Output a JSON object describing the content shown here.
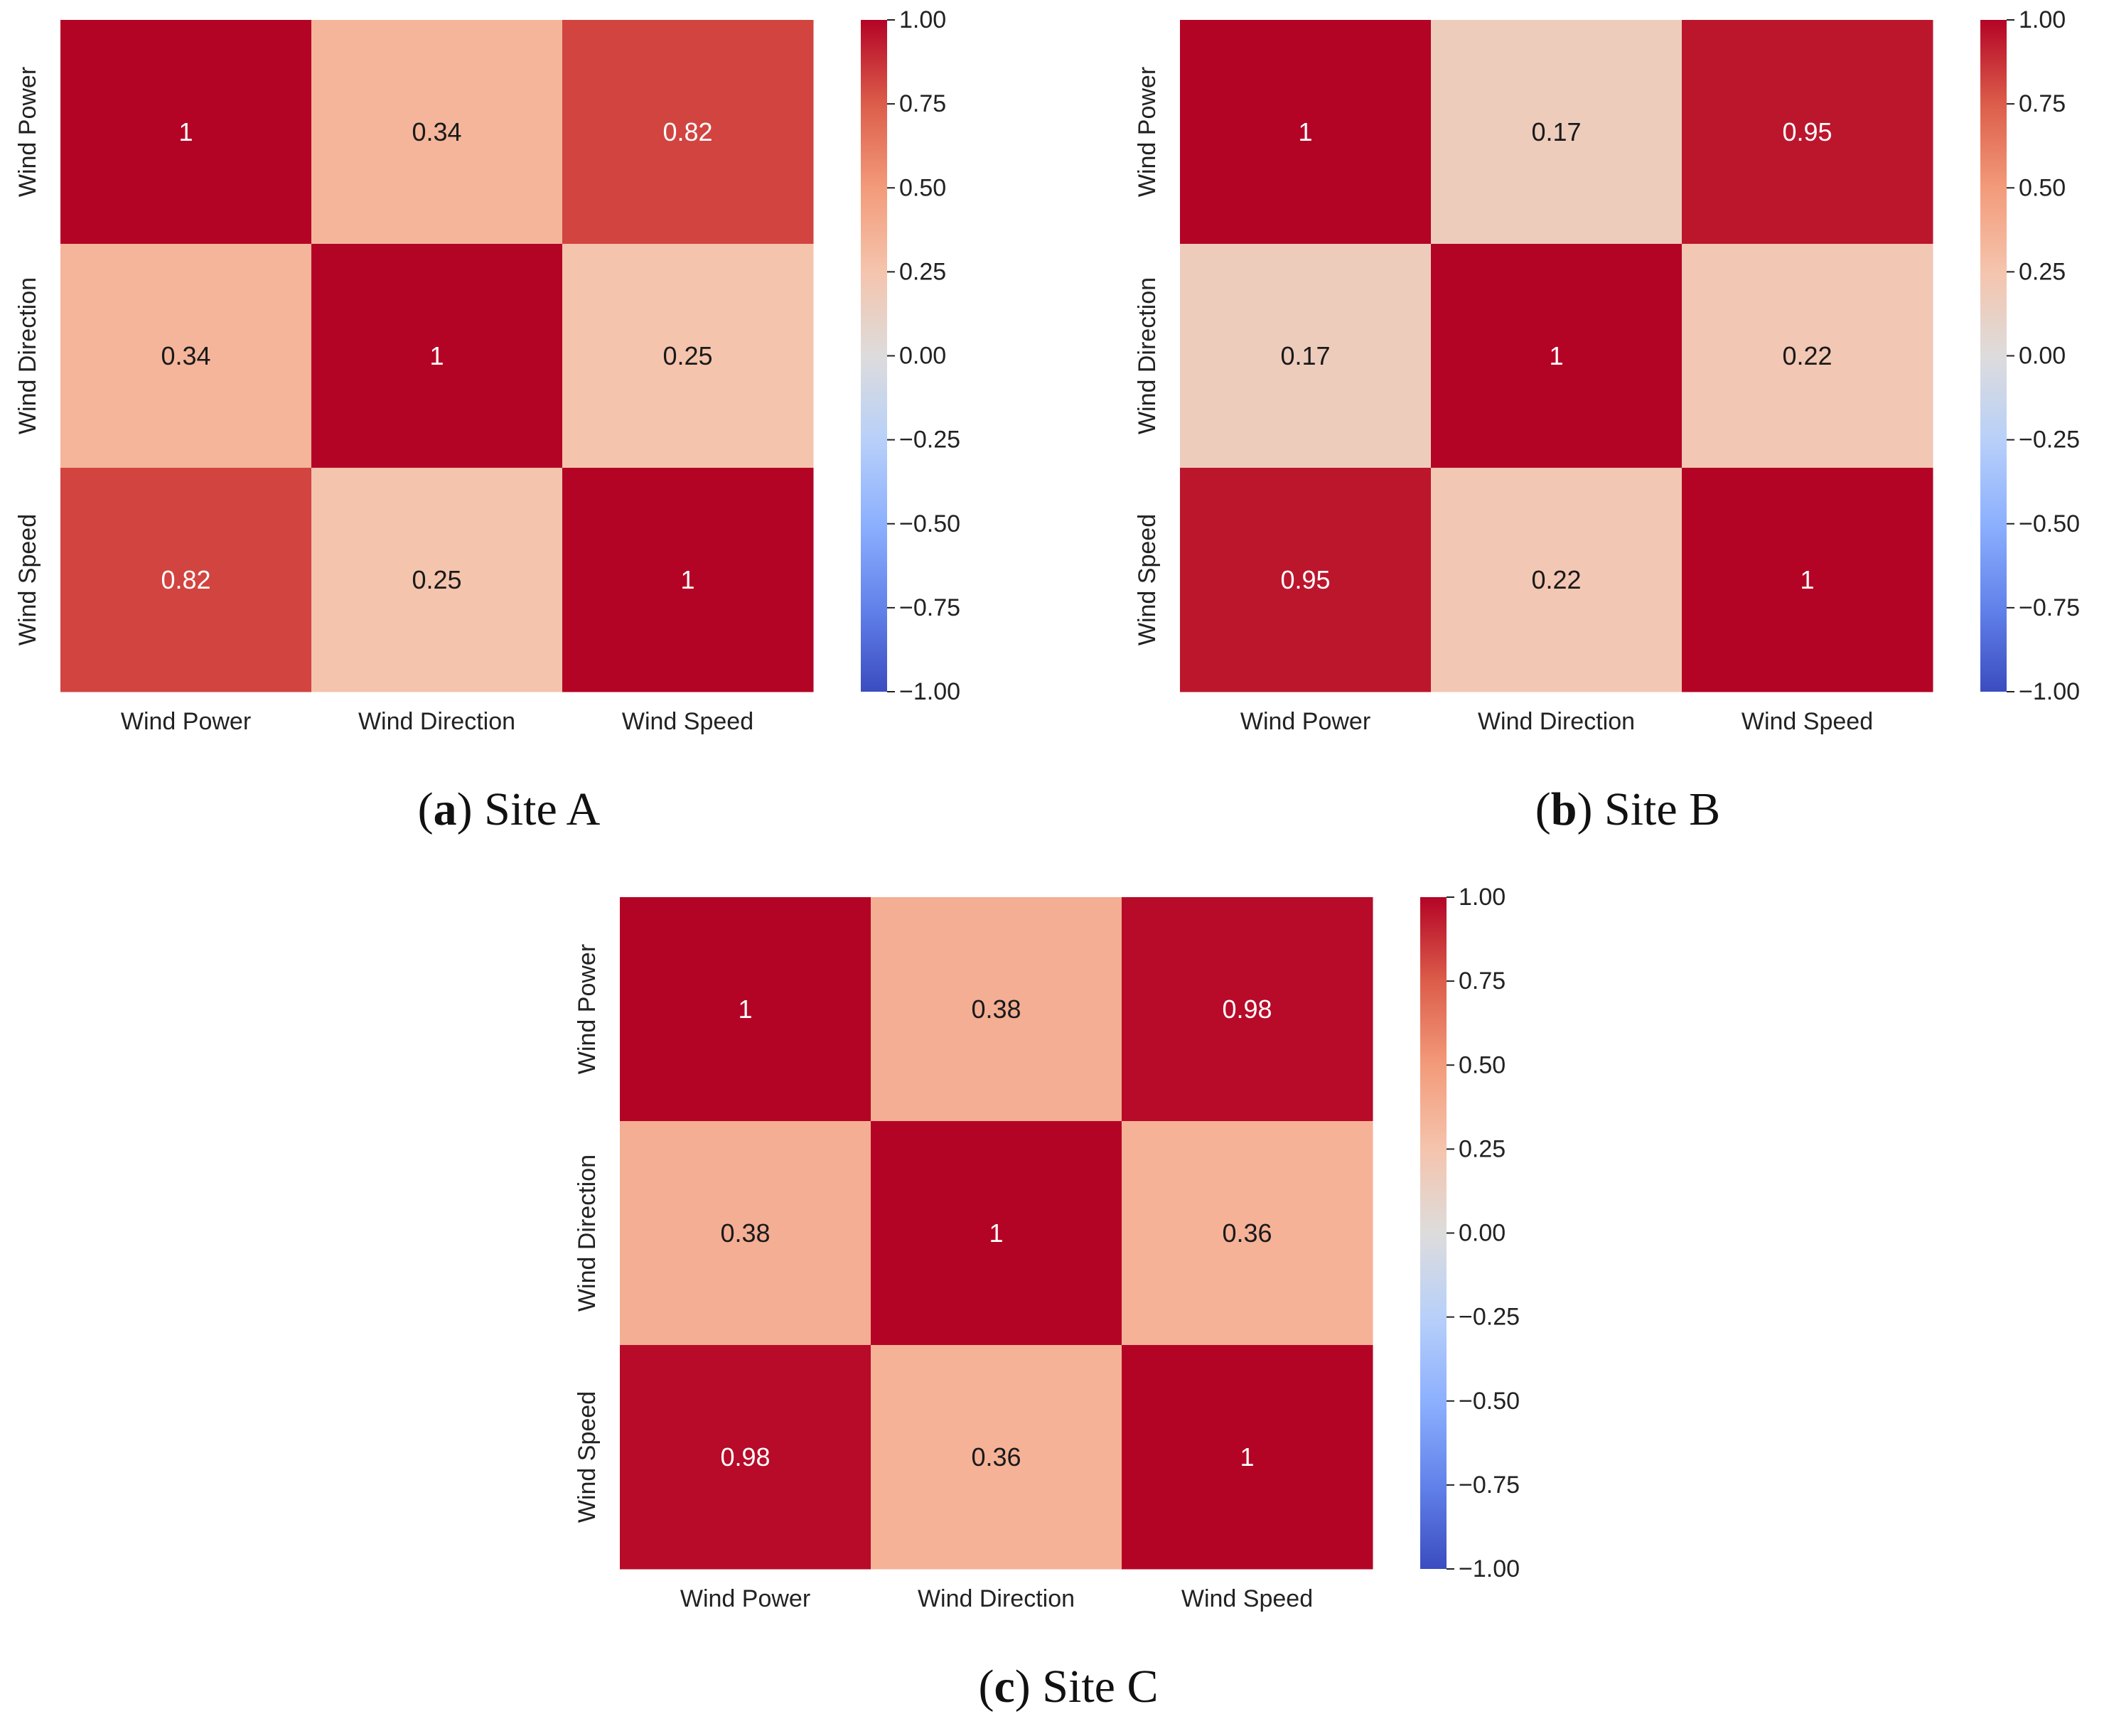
{
  "chart_data": [
    {
      "type": "heatmap",
      "caption_letter": "a",
      "caption_text": " Site A",
      "xlabels": [
        "Wind Power",
        "Wind Direction",
        "Wind Speed"
      ],
      "ylabels": [
        "Wind Power",
        "Wind Direction",
        "Wind Speed"
      ],
      "values": [
        [
          1,
          0.34,
          0.82
        ],
        [
          0.34,
          1,
          0.25
        ],
        [
          0.82,
          0.25,
          1
        ]
      ],
      "annotations": [
        [
          "1",
          "0.34",
          "0.82"
        ],
        [
          "0.34",
          "1",
          "0.25"
        ],
        [
          "0.82",
          "0.25",
          "1"
        ]
      ],
      "colormap": "coolwarm",
      "vmin": -1,
      "vmax": 1,
      "colorbar_ticks": [
        "1.00",
        "0.75",
        "0.50",
        "0.25",
        "0.00",
        "−0.25",
        "−0.50",
        "−0.75",
        "−1.00"
      ]
    },
    {
      "type": "heatmap",
      "caption_letter": "b",
      "caption_text": " Site B",
      "xlabels": [
        "Wind Power",
        "Wind Direction",
        "Wind Speed"
      ],
      "ylabels": [
        "Wind Power",
        "Wind Direction",
        "Wind Speed"
      ],
      "values": [
        [
          1,
          0.17,
          0.95
        ],
        [
          0.17,
          1,
          0.22
        ],
        [
          0.95,
          0.22,
          1
        ]
      ],
      "annotations": [
        [
          "1",
          "0.17",
          "0.95"
        ],
        [
          "0.17",
          "1",
          "0.22"
        ],
        [
          "0.95",
          "0.22",
          "1"
        ]
      ],
      "colormap": "coolwarm",
      "vmin": -1,
      "vmax": 1,
      "colorbar_ticks": [
        "1.00",
        "0.75",
        "0.50",
        "0.25",
        "0.00",
        "−0.25",
        "−0.50",
        "−0.75",
        "−1.00"
      ]
    },
    {
      "type": "heatmap",
      "caption_letter": "c",
      "caption_text": " Site C",
      "xlabels": [
        "Wind Power",
        "Wind Direction",
        "Wind Speed"
      ],
      "ylabels": [
        "Wind Power",
        "Wind Direction",
        "Wind Speed"
      ],
      "values": [
        [
          1,
          0.38,
          0.98
        ],
        [
          0.38,
          1,
          0.36
        ],
        [
          0.98,
          0.36,
          1
        ]
      ],
      "annotations": [
        [
          "1",
          "0.38",
          "0.98"
        ],
        [
          "0.38",
          "1",
          "0.36"
        ],
        [
          "0.98",
          "0.36",
          "1"
        ]
      ],
      "colormap": "coolwarm",
      "vmin": -1,
      "vmax": 1,
      "colorbar_ticks": [
        "1.00",
        "0.75",
        "0.50",
        "0.25",
        "0.00",
        "−0.25",
        "−0.50",
        "−0.75",
        "−1.00"
      ]
    }
  ]
}
